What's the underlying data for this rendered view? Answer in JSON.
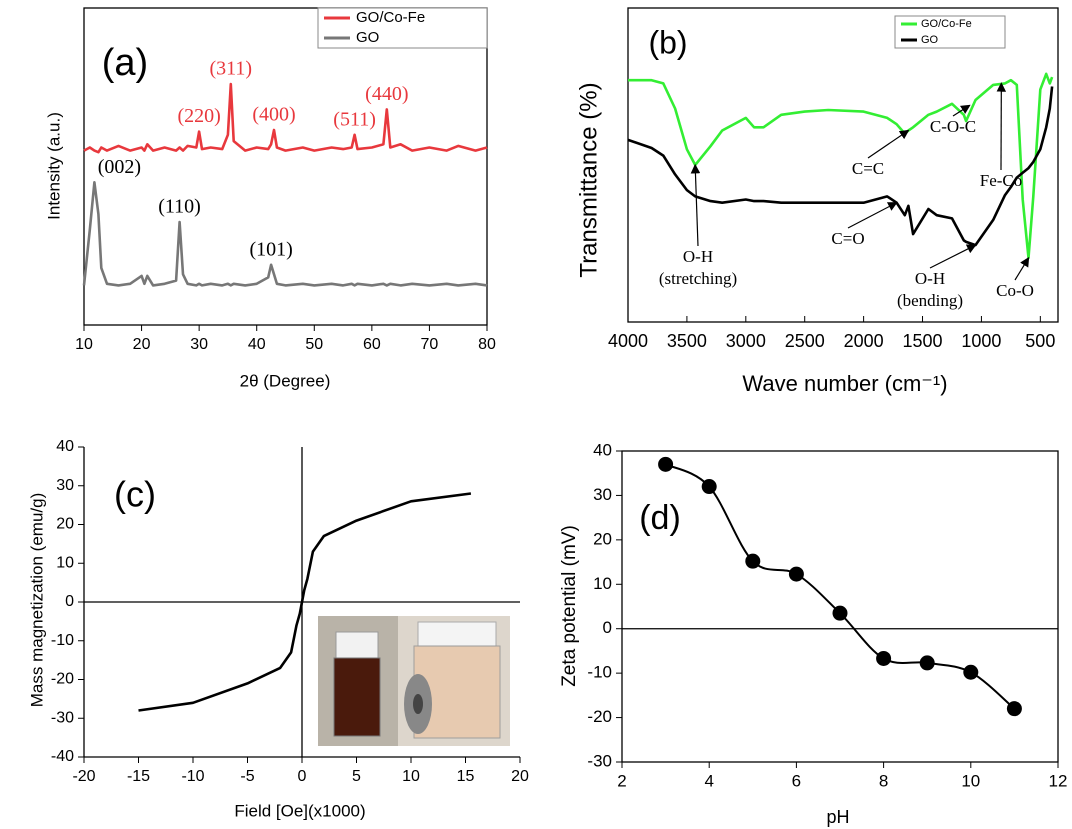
{
  "chart_data": [
    {
      "type": "line",
      "panel_label": "(a)",
      "xlabel": "2θ (Degree)",
      "ylabel": "Intensity (a.u.)",
      "x": [
        10,
        11,
        11.8,
        12.5,
        13,
        14,
        16,
        18,
        20,
        20.5,
        21,
        22,
        24,
        26,
        26.6,
        27.2,
        28,
        29.5,
        30,
        30.5,
        32,
        34,
        35,
        35.5,
        36,
        38,
        40,
        42,
        42.5,
        43,
        43.5,
        45,
        48,
        50,
        53,
        55,
        56.5,
        57,
        57.5,
        60,
        62,
        62.6,
        63.2,
        65,
        67,
        70,
        73,
        75,
        78,
        80
      ],
      "xlim": [
        10,
        80
      ],
      "xticks": [
        10,
        20,
        30,
        40,
        50,
        60,
        70,
        80
      ],
      "ylim": [
        0,
        100
      ],
      "series": [
        {
          "name": "GO/Co-Fe",
          "color": "#e8383d",
          "values": [
            55,
            56,
            55,
            54.5,
            56,
            55,
            56.5,
            55,
            56,
            55,
            57,
            55,
            56,
            55,
            56,
            55,
            56.5,
            56,
            61,
            55.5,
            56,
            55.5,
            60,
            76,
            58,
            55,
            56,
            55.5,
            57,
            61.5,
            56,
            55,
            56,
            55,
            56,
            55.5,
            56,
            60,
            55.5,
            56,
            57,
            68,
            56,
            57,
            55,
            56,
            55,
            56.5,
            55,
            56
          ]
        },
        {
          "name": "GO",
          "color": "#777777",
          "values": [
            12.5,
            30,
            45,
            35,
            18,
            13,
            12.5,
            13,
            15.5,
            13,
            15.5,
            12.5,
            13,
            14,
            32.5,
            16,
            13,
            12.5,
            13,
            12.5,
            13,
            12.5,
            13,
            12.5,
            13,
            12.5,
            13,
            15,
            19,
            16,
            13,
            12.5,
            13,
            12.5,
            13,
            12.5,
            13,
            12.5,
            13,
            12.5,
            13,
            12.5,
            13,
            12.5,
            13,
            12.5,
            13,
            12.5,
            13,
            12.5
          ]
        }
      ],
      "legend": "upper right",
      "annotations": [
        {
          "text": "(220)",
          "x": 30,
          "y": 61,
          "color": "#e8383d"
        },
        {
          "text": "(311)",
          "x": 35.5,
          "y": 76,
          "color": "#e8383d"
        },
        {
          "text": "(400)",
          "x": 43,
          "y": 61.5,
          "color": "#e8383d"
        },
        {
          "text": "(511)",
          "x": 57,
          "y": 60,
          "color": "#e8383d"
        },
        {
          "text": "(440)",
          "x": 62.6,
          "y": 68,
          "color": "#e8383d"
        },
        {
          "text": "(002)",
          "x": 11.8,
          "y": 45,
          "color": "#000000"
        },
        {
          "text": "(110)",
          "x": 26.6,
          "y": 32.5,
          "color": "#000000"
        },
        {
          "text": "(101)",
          "x": 42.5,
          "y": 19,
          "color": "#000000"
        }
      ]
    },
    {
      "type": "line",
      "panel_label": "(b)",
      "xlabel": "Wave number (cm⁻¹)",
      "ylabel": "Transmittance (%)",
      "x": [
        4000,
        3800,
        3700,
        3600,
        3500,
        3430,
        3300,
        3200,
        3000,
        2930,
        2850,
        2700,
        2500,
        2300,
        2000,
        1800,
        1720,
        1650,
        1620,
        1580,
        1450,
        1380,
        1250,
        1150,
        1130,
        1050,
        900,
        800,
        750,
        700,
        650,
        600,
        560,
        500,
        450,
        420,
        400
      ],
      "xlim": [
        4000,
        350
      ],
      "xticks": [
        4000,
        3500,
        3000,
        2500,
        2000,
        1500,
        1000,
        500
      ],
      "ylim": [
        0,
        100
      ],
      "series": [
        {
          "name": "GO/Co-Fe",
          "color": "#33ee33",
          "values": [
            77,
            77,
            76,
            68,
            55,
            50,
            56,
            61,
            65,
            62,
            62,
            66,
            67,
            67.5,
            67,
            65,
            63,
            60,
            61,
            62,
            66,
            67,
            69.5,
            66,
            64,
            70.7,
            75.5,
            76,
            77,
            75.5,
            39,
            20.4,
            40,
            74,
            79,
            76,
            78
          ]
        },
        {
          "name": "GO",
          "color": "#000000",
          "values": [
            58,
            55.4,
            53,
            47,
            42,
            40,
            38.5,
            38,
            39,
            38.5,
            38.5,
            38,
            38,
            38,
            38,
            40,
            38,
            34,
            37,
            28,
            36,
            34,
            33,
            26,
            25.5,
            24.5,
            32.5,
            40.4,
            43,
            46,
            47.5,
            49,
            51,
            55,
            62,
            68,
            75
          ]
        }
      ],
      "legend": "upper right",
      "annotations": [
        {
          "text": [
            "O-H",
            "(stretching)"
          ],
          "x": 3430,
          "y": 50
        },
        {
          "text": [
            "C=C"
          ],
          "x": 1620,
          "y": 61
        },
        {
          "text": [
            "C-O-C"
          ],
          "x": 1100,
          "y": 69
        },
        {
          "text": [
            "Fe-Co"
          ],
          "x": 831,
          "y": 76
        },
        {
          "text": [
            "C=O"
          ],
          "x": 1720,
          "y": 38
        },
        {
          "text": [
            "O-H",
            "(bending)"
          ],
          "x": 1050,
          "y": 24.5
        },
        {
          "text": [
            "Co-O"
          ],
          "x": 600,
          "y": 20.4
        }
      ]
    },
    {
      "type": "line",
      "panel_label": "(c)",
      "xlabel": "Field [Oe](x1000)",
      "ylabel": "Mass magnetization (emu/g)",
      "x": [
        -15,
        -10,
        -5,
        -2,
        -1,
        -0.5,
        -0.2,
        0,
        0.2,
        0.5,
        1,
        2,
        5,
        10,
        15.5
      ],
      "values": [
        -28,
        -26,
        -21,
        -17,
        -13,
        -6,
        -3,
        0,
        3,
        6,
        13,
        17,
        21,
        26,
        28
      ],
      "color": "#000000",
      "xlim": [
        -20,
        20
      ],
      "xticks": [
        -20,
        -15,
        -10,
        -5,
        0,
        5,
        10,
        15,
        20
      ],
      "ylim": [
        -40,
        40
      ],
      "yticks": [
        -40,
        -30,
        -20,
        -10,
        0,
        10,
        20,
        30,
        40
      ],
      "zero_lines": [
        "x",
        "y"
      ]
    },
    {
      "type": "scatter",
      "panel_label": "(d)",
      "xlabel": "pH",
      "ylabel": "Zeta potential (mV)",
      "x": [
        3,
        4,
        5,
        6,
        7,
        8,
        9,
        10,
        11
      ],
      "values": [
        37,
        32,
        15.2,
        12.3,
        3.5,
        -6.7,
        -7.7,
        -9.8,
        -18
      ],
      "color": "#000000",
      "smooth_line": true,
      "xlim": [
        2,
        12
      ],
      "xticks": [
        2,
        4,
        6,
        8,
        10,
        12
      ],
      "ylim": [
        -30,
        40
      ],
      "yticks": [
        -30,
        -20,
        -10,
        0,
        10,
        20,
        30,
        40
      ],
      "zero_lines": [
        "y"
      ]
    }
  ]
}
